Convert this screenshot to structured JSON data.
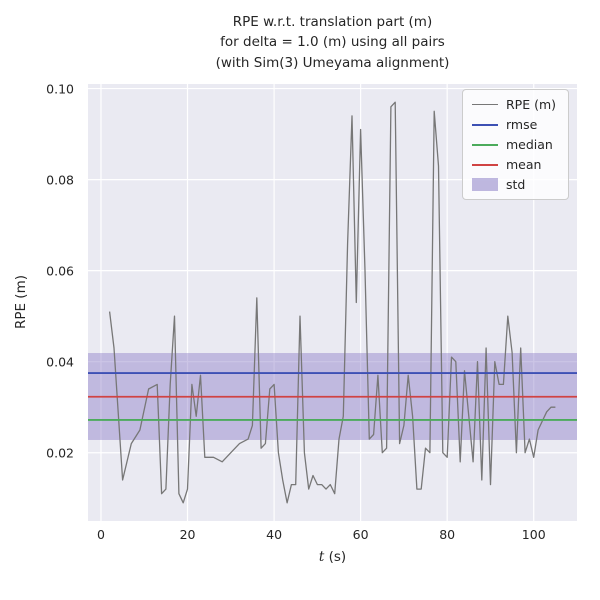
{
  "chart_data": {
    "type": "line",
    "title": "RPE w.r.t. translation part (m)\nfor delta = 1.0 (m) using all pairs\n(with Sim(3) Umeyama alignment)",
    "xlabel_var": "t",
    "xlabel_rest": " (s)",
    "ylabel": "RPE (m)",
    "xlim": [
      -3,
      110
    ],
    "ylim": [
      0.005,
      0.101
    ],
    "xticks": [
      0,
      20,
      40,
      60,
      80,
      100
    ],
    "yticks": [
      0.02,
      0.04,
      0.06,
      0.08,
      0.1
    ],
    "grid": true,
    "legend_position": "upper right",
    "series": {
      "name": "RPE (m)",
      "x": [
        2,
        3,
        5,
        7,
        9,
        11,
        13,
        14,
        15,
        16,
        17,
        18,
        19,
        20,
        21,
        22,
        23,
        24,
        26,
        28,
        30,
        32,
        34,
        35,
        36,
        37,
        38,
        39,
        40,
        41,
        42,
        43,
        44,
        45,
        46,
        47,
        48,
        49,
        50,
        51,
        52,
        53,
        54,
        55,
        56,
        57,
        58,
        59,
        60,
        61,
        62,
        63,
        64,
        65,
        66,
        67,
        68,
        69,
        70,
        71,
        72,
        73,
        74,
        75,
        76,
        77,
        78,
        79,
        80,
        81,
        82,
        83,
        84,
        85,
        86,
        87,
        88,
        89,
        90,
        91,
        92,
        93,
        94,
        95,
        96,
        97,
        98,
        99,
        100,
        101,
        102,
        103,
        104,
        105
      ],
      "y": [
        0.051,
        0.043,
        0.014,
        0.022,
        0.025,
        0.034,
        0.035,
        0.011,
        0.012,
        0.035,
        0.05,
        0.011,
        0.009,
        0.012,
        0.035,
        0.028,
        0.037,
        0.019,
        0.019,
        0.018,
        0.02,
        0.022,
        0.023,
        0.026,
        0.054,
        0.021,
        0.022,
        0.034,
        0.035,
        0.02,
        0.014,
        0.009,
        0.013,
        0.013,
        0.05,
        0.02,
        0.012,
        0.015,
        0.013,
        0.013,
        0.012,
        0.013,
        0.011,
        0.023,
        0.028,
        0.066,
        0.094,
        0.053,
        0.091,
        0.06,
        0.023,
        0.024,
        0.037,
        0.02,
        0.021,
        0.096,
        0.097,
        0.022,
        0.026,
        0.037,
        0.028,
        0.012,
        0.012,
        0.021,
        0.02,
        0.095,
        0.083,
        0.02,
        0.019,
        0.041,
        0.04,
        0.018,
        0.038,
        0.028,
        0.018,
        0.04,
        0.014,
        0.043,
        0.013,
        0.04,
        0.035,
        0.035,
        0.05,
        0.042,
        0.02,
        0.043,
        0.02,
        0.023,
        0.019,
        0.025,
        0.027,
        0.029,
        0.03,
        0.03
      ]
    },
    "stats": {
      "rmse": 0.0375,
      "mean": 0.0323,
      "median": 0.0272,
      "std_band": [
        0.0228,
        0.0419
      ]
    },
    "colors": {
      "plot_background": "#eaeaf2",
      "grid": "#ffffff",
      "series": "#777777",
      "rmse": "#3d50b4",
      "median": "#4cab5c",
      "mean": "#d04343",
      "std": "#8d7fc7"
    },
    "legend": [
      {
        "label": "RPE (m)",
        "color": "#777777",
        "kind": "line",
        "width": 1.8
      },
      {
        "label": "rmse",
        "color": "#3d50b4",
        "kind": "line",
        "width": 2.5
      },
      {
        "label": "median",
        "color": "#4cab5c",
        "kind": "line",
        "width": 2.5
      },
      {
        "label": "mean",
        "color": "#d04343",
        "kind": "line",
        "width": 2.5
      },
      {
        "label": "std",
        "color": "#8d7fc7",
        "kind": "patch"
      }
    ]
  }
}
